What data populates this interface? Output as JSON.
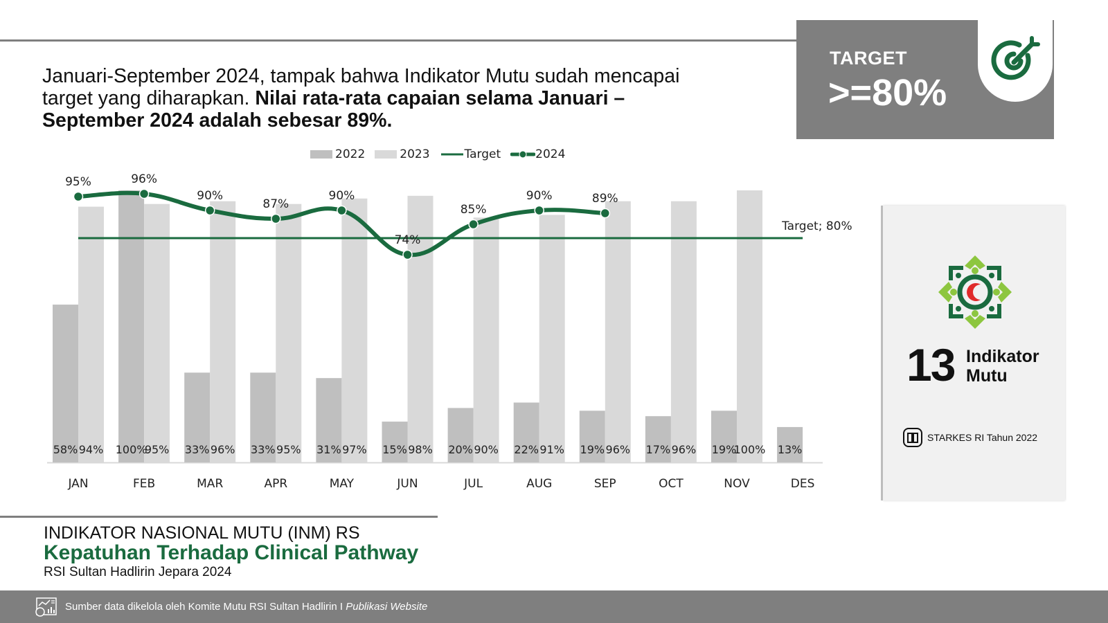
{
  "headline": {
    "normal": "Januari-September 2024, tampak bahwa  Indikator Mutu sudah mencapai target yang diharapkan. ",
    "bold": "Nilai rata-rata capaian selama Januari – September 2024 adalah sebesar 89%."
  },
  "target_panel": {
    "label": "TARGET",
    "value": ">=80%",
    "icon": "target-dart-icon"
  },
  "side_card": {
    "logo": "hospital-logo",
    "count": "13",
    "count_label_line1": "Indikator",
    "count_label_line2": "Mutu",
    "reference_icon": "book-icon",
    "reference": "STARKES RI Tahun 2022"
  },
  "caption": {
    "title": "INDIKATOR NASIONAL MUTU (INM) RS",
    "subtitle": "Kepatuhan Terhadap Clinical Pathway",
    "organization": "RSI Sultan Hadlirin Jepara 2024"
  },
  "footer": {
    "icon": "analytics-report-icon",
    "text": "Sumber data dikelola oleh Komite Mutu RSI Sultan Hadlirin I ",
    "text_italic": "Publikasi Website"
  },
  "colors": {
    "accent_green": "#1a6b3f",
    "bar_2022": "#bfbfbf",
    "bar_2023": "#d9d9d9",
    "panel_gray": "#7f7f7f",
    "logo_light_green": "#8dc63f",
    "logo_red": "#e02a2a"
  },
  "chart_data": {
    "type": "bar",
    "combo": "bar+line",
    "categories": [
      "JAN",
      "FEB",
      "MAR",
      "APR",
      "MAY",
      "JUN",
      "JUL",
      "AUG",
      "SEP",
      "OCT",
      "NOV",
      "DES"
    ],
    "series": [
      {
        "name": "2022",
        "type": "bar",
        "values": [
          58,
          100,
          33,
          33,
          31,
          15,
          20,
          22,
          19,
          17,
          19,
          13
        ],
        "labels": [
          "58%",
          "100%",
          "33%",
          "33%",
          "31%",
          "15%",
          "20%",
          "22%",
          "19%",
          "17%",
          "19%",
          "13%"
        ]
      },
      {
        "name": "2023",
        "type": "bar",
        "values": [
          94,
          95,
          96,
          95,
          97,
          98,
          90,
          91,
          96,
          96,
          100,
          null
        ],
        "labels": [
          "94%",
          "95%",
          "96%",
          "95%",
          "97%",
          "98%",
          "90%",
          "91%",
          "96%",
          "96%",
          "100%",
          ""
        ]
      },
      {
        "name": "Target",
        "type": "line",
        "values": [
          80,
          80,
          80,
          80,
          80,
          80,
          80,
          80,
          80,
          80,
          80,
          80
        ]
      },
      {
        "name": "2024",
        "type": "line",
        "values": [
          95,
          96,
          90,
          87,
          90,
          74,
          85,
          90,
          89,
          null,
          null,
          null
        ],
        "labels": [
          "95%",
          "96%",
          "90%",
          "87%",
          "90%",
          "74%",
          "85%",
          "90%",
          "89%",
          "",
          "",
          ""
        ]
      }
    ],
    "target_annotation": "Target; 80%",
    "legend": [
      "2022",
      "2023",
      "Target",
      "2024"
    ],
    "legend_position": "top-center",
    "title": "",
    "xlabel": "",
    "ylabel": "",
    "ylim": [
      0,
      100
    ],
    "unit": "%",
    "grid": false
  }
}
